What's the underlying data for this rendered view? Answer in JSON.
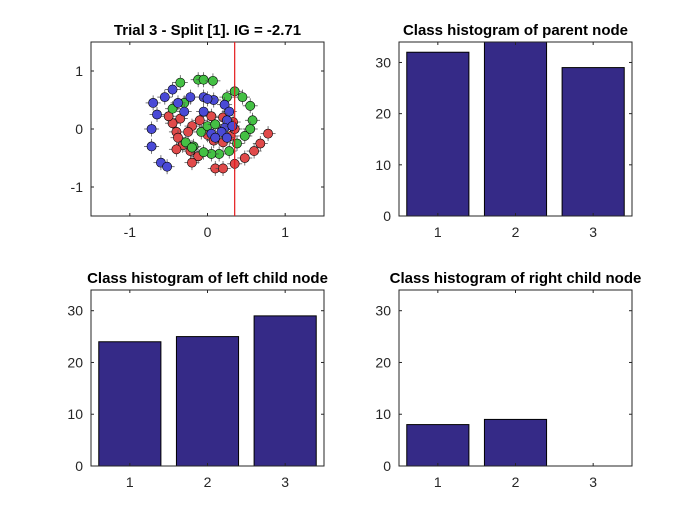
{
  "figure": {
    "background": "#ffffff"
  },
  "chart_data": [
    {
      "type": "scatter",
      "title": "Trial 3 - Split [1]. IG = -2.71",
      "xlabel": "",
      "ylabel": "",
      "xlim": [
        -1.5,
        1.5
      ],
      "ylim": [
        -1.5,
        1.5
      ],
      "xticks": [
        -1,
        0,
        1
      ],
      "yticks": [
        -1,
        0,
        1
      ],
      "xtick_labels": [
        "-1",
        "0",
        "1"
      ],
      "ytick_labels": [
        "-1",
        "0",
        "1"
      ],
      "grid": false,
      "split_line": {
        "x": 0.35,
        "color": "#e41a1c"
      },
      "series": [
        {
          "color": "#e04a4a",
          "points": [
            [
              0.0,
              -0.1
            ],
            [
              0.08,
              -0.2
            ],
            [
              0.2,
              -0.23
            ],
            [
              0.3,
              -0.12
            ],
            [
              0.35,
              0.0
            ],
            [
              0.33,
              0.12
            ],
            [
              0.2,
              0.2
            ],
            [
              0.05,
              0.22
            ],
            [
              -0.1,
              0.15
            ],
            [
              -0.2,
              0.05
            ],
            [
              -0.25,
              -0.05
            ],
            [
              -0.4,
              -0.05
            ],
            [
              -0.45,
              0.1
            ],
            [
              -0.35,
              0.18
            ],
            [
              -0.38,
              -0.15
            ],
            [
              -0.32,
              -0.28
            ],
            [
              -0.22,
              -0.38
            ],
            [
              -0.12,
              -0.47
            ],
            [
              -0.2,
              -0.58
            ],
            [
              0.1,
              -0.68
            ],
            [
              0.2,
              -0.68
            ],
            [
              0.35,
              -0.6
            ],
            [
              0.48,
              -0.5
            ],
            [
              0.6,
              -0.38
            ],
            [
              0.68,
              -0.25
            ],
            [
              0.78,
              -0.08
            ],
            [
              -0.5,
              0.22
            ],
            [
              -0.4,
              -0.35
            ]
          ]
        },
        {
          "color": "#44c044",
          "points": [
            [
              -0.35,
              0.8
            ],
            [
              -0.12,
              0.85
            ],
            [
              -0.05,
              0.85
            ],
            [
              0.07,
              0.83
            ],
            [
              0.35,
              0.65
            ],
            [
              0.45,
              0.55
            ],
            [
              0.55,
              0.4
            ],
            [
              0.58,
              0.15
            ],
            [
              0.55,
              0.0
            ],
            [
              0.48,
              -0.12
            ],
            [
              0.38,
              -0.25
            ],
            [
              0.28,
              -0.38
            ],
            [
              0.15,
              -0.43
            ],
            [
              0.05,
              -0.43
            ],
            [
              -0.05,
              -0.4
            ],
            [
              -0.18,
              -0.3
            ],
            [
              -0.28,
              -0.23
            ],
            [
              -0.08,
              -0.05
            ],
            [
              0.0,
              0.05
            ],
            [
              0.1,
              0.08
            ],
            [
              -0.45,
              0.35
            ],
            [
              -0.3,
              0.45
            ],
            [
              0.25,
              0.55
            ],
            [
              -0.2,
              -0.32
            ]
          ]
        },
        {
          "color": "#4a4ad6",
          "points": [
            [
              -0.7,
              0.45
            ],
            [
              -0.55,
              0.55
            ],
            [
              -0.45,
              0.68
            ],
            [
              -0.65,
              0.25
            ],
            [
              -0.72,
              0.0
            ],
            [
              -0.72,
              -0.3
            ],
            [
              -0.6,
              -0.58
            ],
            [
              -0.52,
              -0.65
            ],
            [
              -0.38,
              0.45
            ],
            [
              -0.22,
              0.55
            ],
            [
              -0.05,
              0.55
            ],
            [
              0.08,
              0.5
            ],
            [
              0.22,
              0.42
            ],
            [
              0.28,
              0.3
            ],
            [
              0.25,
              0.15
            ],
            [
              0.22,
              0.02
            ],
            [
              0.18,
              -0.05
            ],
            [
              0.05,
              -0.08
            ],
            [
              0.1,
              -0.15
            ],
            [
              0.25,
              -0.15
            ],
            [
              -0.05,
              0.3
            ],
            [
              0.0,
              0.52
            ],
            [
              -0.3,
              0.3
            ],
            [
              0.32,
              0.05
            ]
          ]
        }
      ]
    },
    {
      "type": "bar",
      "title": "Class histogram of parent node",
      "xlabel": "",
      "ylabel": "",
      "categories": [
        "1",
        "2",
        "3"
      ],
      "values": [
        32,
        34,
        29
      ],
      "ylim": [
        0,
        34
      ],
      "yticks": [
        0,
        10,
        20,
        30
      ],
      "ytick_labels": [
        "0",
        "10",
        "20",
        "30"
      ],
      "bar_color": "#352a87",
      "grid": false
    },
    {
      "type": "bar",
      "title": "Class histogram of left child node",
      "xlabel": "",
      "ylabel": "",
      "categories": [
        "1",
        "2",
        "3"
      ],
      "values": [
        24,
        25,
        29
      ],
      "ylim": [
        0,
        34
      ],
      "yticks": [
        0,
        10,
        20,
        30
      ],
      "ytick_labels": [
        "0",
        "10",
        "20",
        "30"
      ],
      "bar_color": "#352a87",
      "grid": false
    },
    {
      "type": "bar",
      "title": "Class histogram of right child node",
      "xlabel": "",
      "ylabel": "",
      "categories": [
        "1",
        "2",
        "3"
      ],
      "values": [
        8,
        9,
        0
      ],
      "ylim": [
        0,
        34
      ],
      "yticks": [
        0,
        10,
        20,
        30
      ],
      "ytick_labels": [
        "0",
        "10",
        "20",
        "30"
      ],
      "bar_color": "#352a87",
      "grid": false
    }
  ]
}
